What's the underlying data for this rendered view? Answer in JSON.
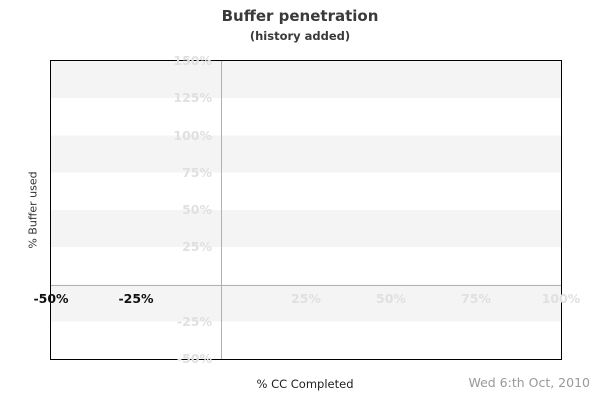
{
  "chart_data": {
    "type": "line",
    "title": "Buffer penetration",
    "subtitle": "(history added)",
    "xlabel": "% CC Completed",
    "ylabel": "% Buffer used",
    "xlim": [
      -50,
      100
    ],
    "ylim": [
      -50,
      150
    ],
    "xticks": [
      {
        "value": -50,
        "label": "-50%",
        "emphasis": true
      },
      {
        "value": -25,
        "label": "-25%",
        "emphasis": true
      },
      {
        "value": 25,
        "label": "25%",
        "emphasis": false
      },
      {
        "value": 50,
        "label": "50%",
        "emphasis": false
      },
      {
        "value": 75,
        "label": "75%",
        "emphasis": false
      },
      {
        "value": 100,
        "label": "100%",
        "emphasis": false
      }
    ],
    "yticks": [
      {
        "value": 150,
        "label": "150%"
      },
      {
        "value": 125,
        "label": "125%"
      },
      {
        "value": 100,
        "label": "100%"
      },
      {
        "value": 75,
        "label": "75%"
      },
      {
        "value": 50,
        "label": "50%"
      },
      {
        "value": 25,
        "label": "25%"
      },
      {
        "value": -25,
        "label": "-25%"
      },
      {
        "value": -50,
        "label": "-50%"
      }
    ],
    "series": [],
    "grid": {
      "bands": "horizontal alternating gray/white every 25%",
      "zero_lines": [
        "x=0",
        "y=0"
      ],
      "legend": "none"
    }
  },
  "footer": {
    "date": "Wed 6:th Oct, 2010"
  },
  "colors": {
    "background": "#ffffff",
    "band": "#f4f4f4",
    "faded_label": "#e0e0e0",
    "emphasis_label": "#111111",
    "zero_line": "#b0b0b0",
    "plot_border": "#000000",
    "title": "#3a3a3a",
    "axis_title": "#333333",
    "date": "#999999"
  }
}
